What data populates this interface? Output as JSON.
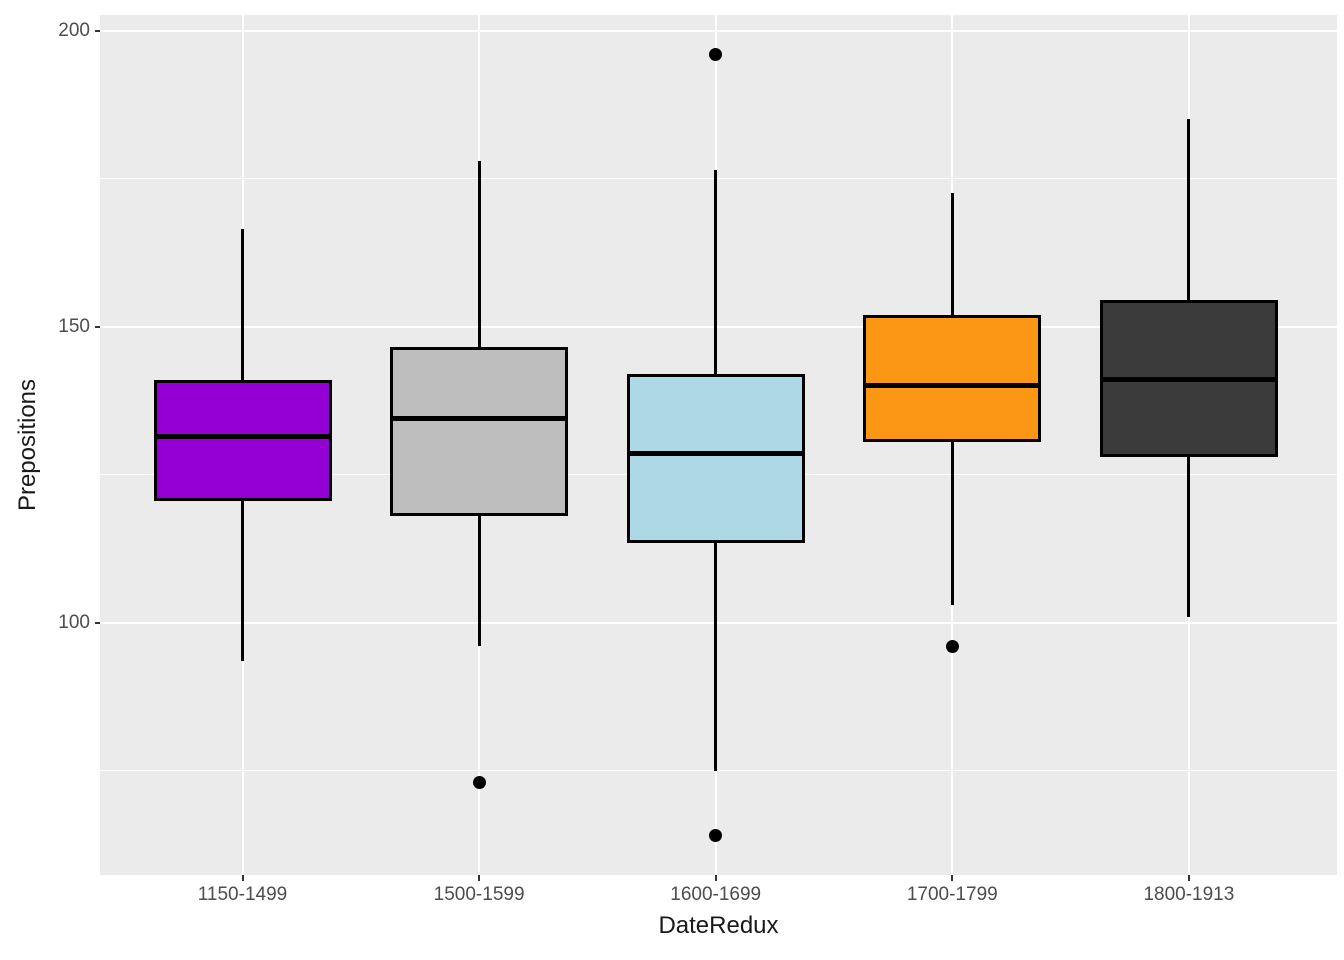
{
  "figure": {
    "background": "#FFFFFF"
  },
  "chart_data": {
    "type": "boxplot",
    "title": "",
    "xlabel": "DateRedux",
    "ylabel": "Prepositions",
    "categories": [
      "1150-1499",
      "1500-1599",
      "1600-1699",
      "1700-1799",
      "1800-1913"
    ],
    "series": [
      {
        "category": "1150-1499",
        "fill": "#9400D3",
        "lower_whisker": 93.5,
        "q1": 120.5,
        "median": 131.5,
        "q3": 141,
        "upper_whisker": 166.5,
        "outliers": []
      },
      {
        "category": "1500-1599",
        "fill": "#BEBEBE",
        "lower_whisker": 96,
        "q1": 118,
        "median": 134.5,
        "q3": 146.5,
        "upper_whisker": 178,
        "outliers": [
          73
        ]
      },
      {
        "category": "1600-1699",
        "fill": "#ADD8E6",
        "lower_whisker": 75,
        "q1": 113.5,
        "median": 128.5,
        "q3": 142,
        "upper_whisker": 176.5,
        "outliers": [
          196,
          64
        ]
      },
      {
        "category": "1700-1799",
        "fill": "#FB9714",
        "lower_whisker": 103,
        "q1": 130.5,
        "median": 140,
        "q3": 152,
        "upper_whisker": 172.5,
        "outliers": [
          96
        ]
      },
      {
        "category": "1800-1913",
        "fill": "#3B3B3B",
        "lower_whisker": 101,
        "q1": 128,
        "median": 141,
        "q3": 154.5,
        "upper_whisker": 185,
        "outliers": []
      }
    ],
    "y_axis": {
      "tick_values": [
        100,
        150,
        200
      ],
      "tick_labels": [
        "100",
        "150",
        "200"
      ],
      "minor_gridlines": [
        75,
        125,
        175
      ],
      "range": [
        57.35,
        202.65
      ]
    },
    "x_axis": {
      "tick_labels": [
        "1150-1499",
        "1500-1599",
        "1600-1699",
        "1700-1799",
        "1800-1913"
      ]
    },
    "legend_position": "none",
    "grid": "on",
    "styles": {
      "panel_bg": "#EBEBEB",
      "grid_color": "#FFFFFF",
      "axis_text_color": "#4D4D4D",
      "axis_title_color": "#1A1A1A",
      "tick_mark_color": "#333333",
      "box_outline_color": "#000000",
      "outlier_color": "#000000"
    }
  }
}
